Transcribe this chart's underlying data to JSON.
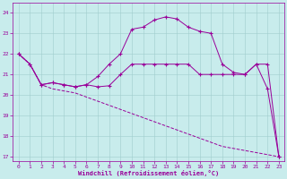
{
  "xlabel": "Windchill (Refroidissement éolien,°C)",
  "ylabel": "",
  "bg_color": "#c8ecec",
  "line_color": "#990099",
  "ylim": [
    16.8,
    24.5
  ],
  "yticks": [
    17,
    18,
    19,
    20,
    21,
    22,
    23,
    24
  ],
  "xlim": [
    -0.5,
    23.5
  ],
  "xticks": [
    0,
    1,
    2,
    3,
    4,
    5,
    6,
    7,
    8,
    9,
    10,
    11,
    12,
    13,
    14,
    15,
    16,
    17,
    18,
    19,
    20,
    21,
    22,
    23
  ],
  "line1_x": [
    0,
    1,
    2,
    3,
    4,
    5,
    6,
    7,
    8,
    9,
    10,
    11,
    12,
    13,
    14,
    15,
    16,
    17,
    18,
    19,
    20,
    21,
    22,
    23
  ],
  "line1_y": [
    22.0,
    21.5,
    20.5,
    20.6,
    20.5,
    20.4,
    20.5,
    20.4,
    20.45,
    21.0,
    21.5,
    21.5,
    21.5,
    21.5,
    21.5,
    21.5,
    21.0,
    21.0,
    21.0,
    21.0,
    21.0,
    21.5,
    21.5,
    17.0
  ],
  "line2_x": [
    0,
    1,
    2,
    3,
    4,
    5,
    6,
    7,
    8,
    9,
    10,
    11,
    12,
    13,
    14,
    15,
    16,
    17,
    18,
    19,
    20,
    21,
    22,
    23
  ],
  "line2_y": [
    22.0,
    21.5,
    20.5,
    20.6,
    20.5,
    20.4,
    20.5,
    20.9,
    21.5,
    22.0,
    23.2,
    23.3,
    23.65,
    23.8,
    23.7,
    23.3,
    23.1,
    23.0,
    21.5,
    21.1,
    21.0,
    21.5,
    20.3,
    17.0
  ],
  "line3_x": [
    0,
    1,
    2,
    3,
    4,
    5,
    6,
    7,
    8,
    9,
    10,
    11,
    12,
    13,
    14,
    15,
    16,
    17,
    18,
    19,
    20,
    21,
    22,
    23
  ],
  "line3_y": [
    22.0,
    21.5,
    20.5,
    20.3,
    20.2,
    20.1,
    19.9,
    19.7,
    19.5,
    19.3,
    19.1,
    18.9,
    18.7,
    18.5,
    18.3,
    18.1,
    17.9,
    17.7,
    17.5,
    17.4,
    17.3,
    17.2,
    17.1,
    17.0
  ]
}
